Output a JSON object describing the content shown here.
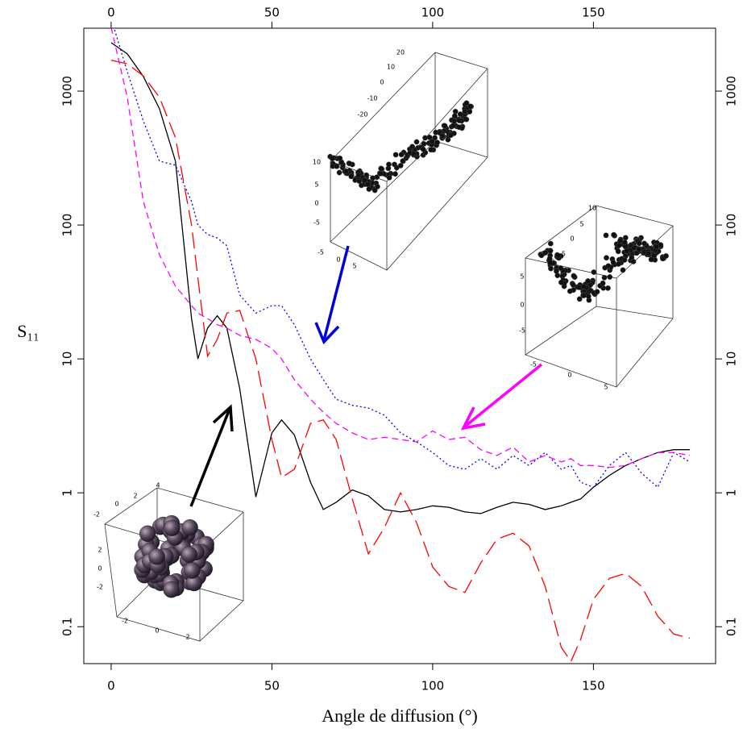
{
  "chart_data": {
    "type": "line",
    "x_label": "Angle de diffusion (°)",
    "y_label": "S₁₁",
    "log_y": true,
    "xlim": [
      -8.5,
      188
    ],
    "xticks": [
      0,
      50,
      100,
      150
    ],
    "ylim": [
      0.053,
      2950
    ],
    "yticks": [
      0.1,
      1,
      10,
      100,
      1000
    ],
    "x": [
      0,
      5,
      10,
      15,
      20,
      25,
      27,
      30,
      33,
      36,
      40,
      45,
      50,
      53,
      57,
      62,
      66,
      70,
      75,
      80,
      85,
      90,
      95,
      100,
      105,
      110,
      115,
      120,
      125,
      130,
      135,
      140,
      143,
      146,
      150,
      155,
      160,
      165,
      170,
      175,
      180
    ],
    "series": [
      {
        "color": "#000000",
        "linestyle": "solid",
        "values": [
          2300,
          1900,
          1290,
          740,
          300,
          20,
          10,
          17,
          21,
          17,
          6,
          0.93,
          2.8,
          3.5,
          2.7,
          1.2,
          0.75,
          0.85,
          1.05,
          0.95,
          0.75,
          0.72,
          0.75,
          0.8,
          0.78,
          0.72,
          0.7,
          0.78,
          0.85,
          0.82,
          0.75,
          0.8,
          0.85,
          0.9,
          1.1,
          1.35,
          1.6,
          1.8,
          2.0,
          2.1,
          2.1
        ]
      },
      {
        "color": "#ff0000",
        "linestyle": "longdash",
        "values": [
          1700,
          1600,
          1300,
          900,
          450,
          100,
          40,
          10.5,
          14,
          22,
          23,
          10,
          2.5,
          1.3,
          1.5,
          3.3,
          3.5,
          2.5,
          0.9,
          0.35,
          0.55,
          1.0,
          0.6,
          0.28,
          0.2,
          0.18,
          0.3,
          0.45,
          0.5,
          0.4,
          0.2,
          0.07,
          0.055,
          0.08,
          0.16,
          0.23,
          0.25,
          0.2,
          0.12,
          0.088,
          0.082
        ]
      },
      {
        "color": "#0000ff",
        "linestyle": "dotted",
        "values": [
          3500,
          1400,
          600,
          300,
          280,
          150,
          100,
          85,
          80,
          70,
          30,
          22,
          25,
          25,
          18,
          10,
          7,
          5,
          4.5,
          4.3,
          3.8,
          2.8,
          2.4,
          2.0,
          1.6,
          1.5,
          1.8,
          1.5,
          1.9,
          1.6,
          2.0,
          1.5,
          1.6,
          1.2,
          1.1,
          1.6,
          2.0,
          1.4,
          1.1,
          2.0,
          1.7
        ]
      },
      {
        "color": "#ff00ff",
        "linestyle": "dashed",
        "values": [
          3000,
          900,
          150,
          60,
          35,
          25,
          22,
          20,
          18,
          17,
          15,
          14,
          12,
          10,
          7,
          5,
          4,
          3.3,
          2.8,
          2.5,
          2.6,
          2.5,
          2.4,
          2.9,
          2.5,
          2.6,
          2.1,
          1.9,
          2.2,
          1.7,
          1.9,
          1.7,
          1.8,
          1.6,
          1.6,
          1.55,
          1.6,
          1.8,
          2.0,
          2.0,
          1.9
        ]
      }
    ]
  },
  "insets": [
    {
      "labels": [
        "20",
        "10",
        "0",
        "-10",
        "-20",
        "10",
        "5",
        "0",
        "-5",
        "-5",
        "0",
        "5"
      ]
    },
    {
      "labels": [
        "10",
        "5",
        "0",
        "-5",
        "-10",
        "5",
        "0",
        "-5",
        "-5",
        "0",
        "5"
      ]
    },
    {
      "labels": [
        "4",
        "2",
        "0",
        "-2",
        "2",
        "0",
        "-2",
        "-2",
        "0",
        "2"
      ]
    }
  ]
}
